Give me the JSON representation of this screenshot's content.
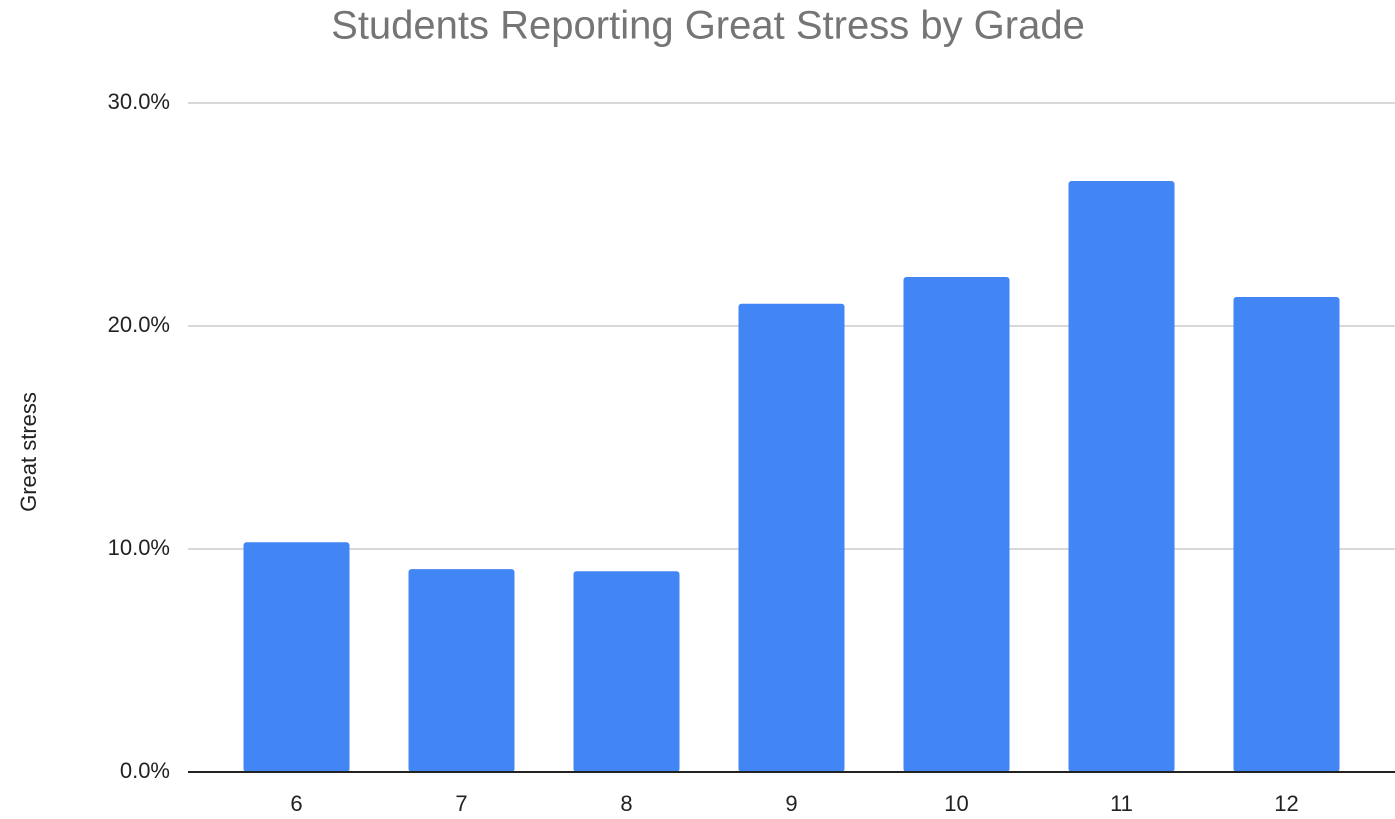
{
  "chart_data": {
    "type": "bar",
    "title": "Students Reporting Great Stress by Grade",
    "y_label": "Great stress",
    "categories": [
      "6",
      "7",
      "8",
      "9",
      "10",
      "11",
      "12"
    ],
    "values": [
      10.3,
      9.1,
      9.0,
      21.0,
      22.2,
      26.5,
      21.3
    ],
    "color": "#4285f4",
    "ylim": [
      0,
      30
    ],
    "yticks": [
      {
        "value": 0,
        "label": "0.0%"
      },
      {
        "value": 10,
        "label": "10.0%"
      },
      {
        "value": 20,
        "label": "20.0%"
      },
      {
        "value": 30,
        "label": "30.0%"
      }
    ],
    "grid": true
  }
}
